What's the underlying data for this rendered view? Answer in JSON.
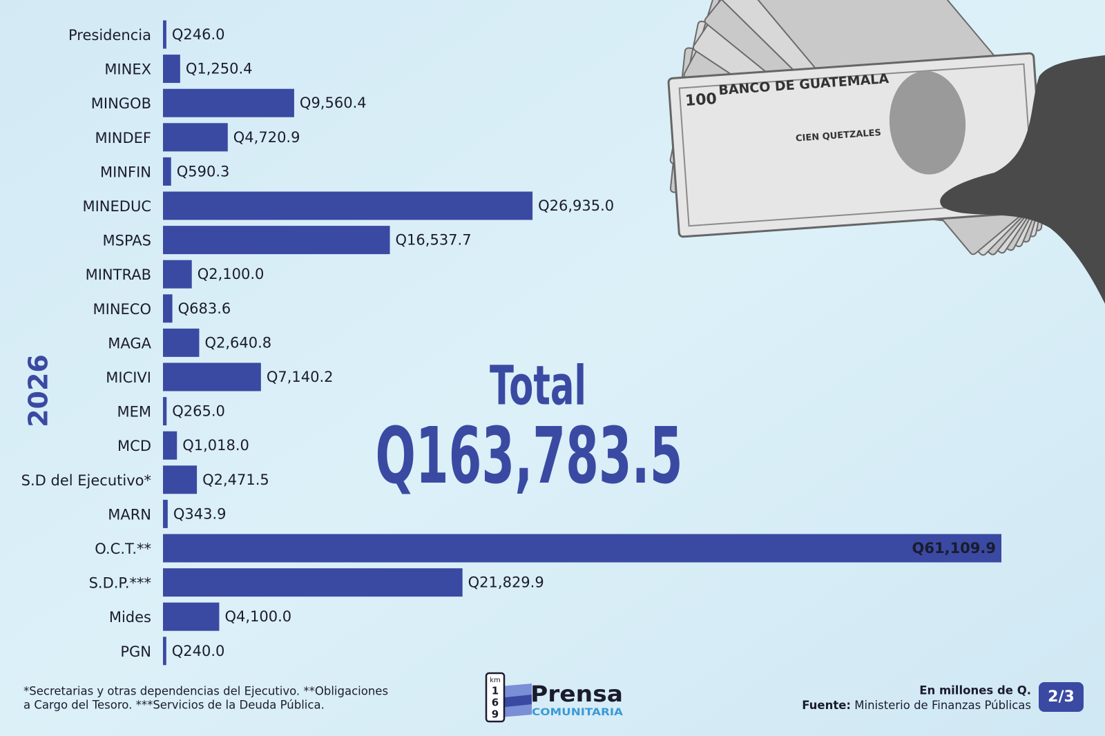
{
  "chart_data": {
    "type": "bar",
    "orientation": "horizontal",
    "side_label": "2026",
    "categories": [
      "Presidencia",
      "MINEX",
      "MINGOB",
      "MINDEF",
      "MINFIN",
      "MINEDUC",
      "MSPAS",
      "MINTRAB",
      "MINECO",
      "MAGA",
      "MICIVI",
      "MEM",
      "MCD",
      "S.D del Ejecutivo*",
      "MARN",
      "O.C.T.**",
      "S.D.P.***",
      "Mides",
      "PGN"
    ],
    "values": [
      246.0,
      1250.4,
      9560.4,
      4720.9,
      590.3,
      26935.0,
      16537.7,
      2100.0,
      683.6,
      2640.8,
      7140.2,
      265.0,
      1018.0,
      2471.5,
      343.9,
      61109.9,
      21829.9,
      4100.0,
      240.0
    ],
    "value_labels": [
      "Q246.0",
      "Q1,250.4",
      "Q9,560.4",
      "Q4,720.9",
      "Q590.3",
      "Q26,935.0",
      "Q16,537.7",
      "Q2,100.0",
      "Q683.6",
      "Q2,640.8",
      "Q7,140.2",
      "Q265.0",
      "Q1,018.0",
      "Q2,471.5",
      "Q343.9",
      "Q61,109.9",
      "Q21,829.9",
      "Q4,100.0",
      "Q240.0"
    ],
    "color": "#3a4aa2",
    "total_title": "Total",
    "total_label": "Q163,783.5"
  },
  "footer": {
    "notes": [
      "*Secretarias y otras dependencias del Ejecutivo. **Obligaciones",
      "a Cargo del Tesoro. ***Servicios de la Deuda Pública."
    ],
    "units": "En millones de Q.",
    "source_label": "Fuente:",
    "source": "Ministerio de Finanzas Públicas",
    "page": "2/3"
  },
  "logo": {
    "km": "km",
    "digits": [
      "1",
      "6",
      "9"
    ],
    "name": "Prensa",
    "sub": "COMUNITARIA"
  },
  "photo": {
    "bank": "BANCO DE GUATEMALA",
    "denomination": "CIEN QUETZALES",
    "number": "100"
  }
}
